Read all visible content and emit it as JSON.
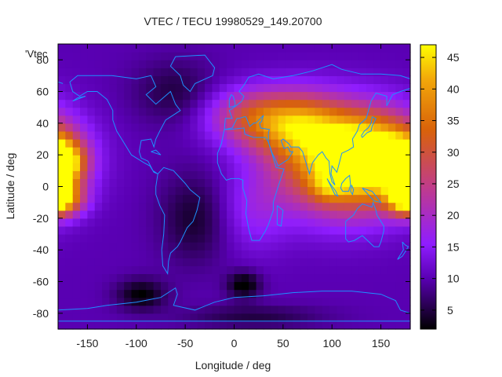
{
  "chart_data": {
    "type": "heatmap",
    "title": "VTEC / TECU 19980529_149.20700",
    "xlabel": "Longitude / deg",
    "ylabel": "Latitude / deg",
    "key_label": "'Vtec",
    "xlim": [
      -180,
      180
    ],
    "ylim": [
      -90,
      90
    ],
    "x_ticks": [
      -150,
      -100,
      -50,
      0,
      50,
      100,
      150
    ],
    "y_ticks": [
      -80,
      -60,
      -40,
      -20,
      0,
      20,
      40,
      60,
      80
    ],
    "colorbar": {
      "range": [
        2,
        47
      ],
      "ticks": [
        5,
        10,
        15,
        20,
        25,
        30,
        35,
        40,
        45
      ]
    },
    "colors": {
      "coastline": "#1e90ff",
      "frame": "#000000"
    },
    "enhancement_regions": [
      {
        "lon": 110,
        "lat": 15,
        "value": 34,
        "lon_spread": 45,
        "lat_spread": 22
      },
      {
        "lon": 95,
        "lat": 0,
        "value": 8,
        "lon_spread": 12,
        "lat_spread": 6
      },
      {
        "lon": 150,
        "lat": 20,
        "value": 26,
        "lon_spread": 35,
        "lat_spread": 18
      },
      {
        "lon": 60,
        "lat": 40,
        "value": 24,
        "lon_spread": 35,
        "lat_spread": 14
      },
      {
        "lon": 175,
        "lat": -5,
        "value": 14,
        "lon_spread": 12,
        "lat_spread": 8
      },
      {
        "lon": -178,
        "lat": 15,
        "value": 36,
        "lon_spread": 16,
        "lat_spread": 10
      },
      {
        "lon": -178,
        "lat": -8,
        "value": 28,
        "lon_spread": 16,
        "lat_spread": 7
      },
      {
        "lon": 10,
        "lat": 45,
        "value": 12,
        "lon_spread": 30,
        "lat_spread": 12
      },
      {
        "lon": 20,
        "lat": -15,
        "value": 6,
        "lon_spread": 25,
        "lat_spread": 18
      }
    ],
    "depletion_regions": [
      {
        "lon": 10,
        "lat": -62,
        "value": -9,
        "lon_spread": 12,
        "lat_spread": 6
      },
      {
        "lon": -95,
        "lat": -68,
        "value": -8,
        "lon_spread": 18,
        "lat_spread": 7
      },
      {
        "lon": -40,
        "lat": -20,
        "value": -6,
        "lon_spread": 25,
        "lat_spread": 20
      },
      {
        "lon": -60,
        "lat": 60,
        "value": -5,
        "lon_spread": 30,
        "lat_spread": 14
      },
      {
        "lon": 20,
        "lat": -82,
        "value": -5,
        "lon_spread": 50,
        "lat_spread": 5
      }
    ],
    "background_value": 10
  }
}
